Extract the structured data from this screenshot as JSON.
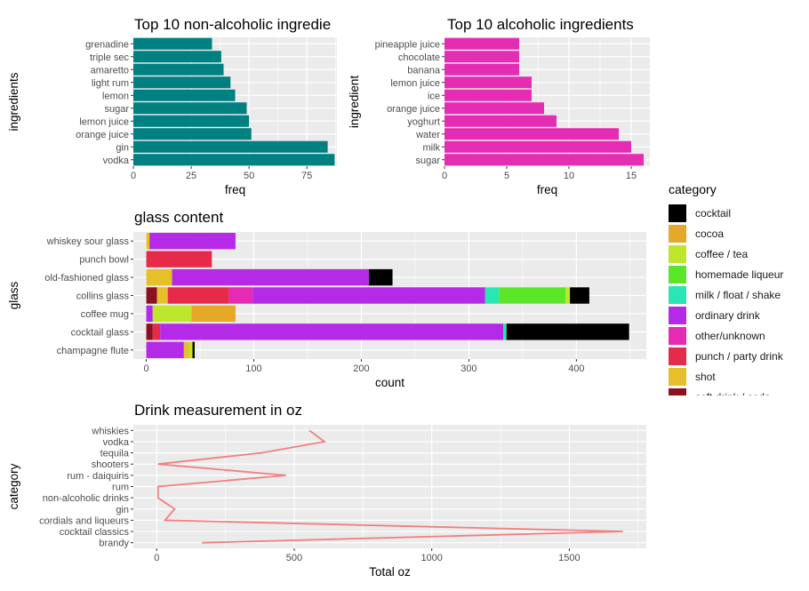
{
  "colors": {
    "panel_bg": "#EBEBEB",
    "grid": "#FFFFFF",
    "non_alc_bar": "#008080",
    "alc_bar": "#E52DB4",
    "line": "#F08080",
    "tick_text": "#4D4D4D"
  },
  "category_colors": {
    "cocktail": "#000000",
    "cocoa": "#E6A82A",
    "coffee / tea": "#BEE62A",
    "homemade liqueur": "#5CE62A",
    "milk / float / shake": "#2AE6B4",
    "ordinary drink": "#B42AE6",
    "other/unknown": "#E62AB4",
    "punch / party drink": "#E62A4A",
    "shot": "#E6C02A",
    "soft drink / soda": "#8B1020"
  },
  "legend": {
    "title": "category",
    "items": [
      "cocktail",
      "cocoa",
      "coffee / tea",
      "homemade liqueur",
      "milk / float / shake",
      "ordinary drink",
      "other/unknown",
      "punch / party drink",
      "shot",
      "soft drink / soda"
    ]
  },
  "chart_data": [
    {
      "type": "bar",
      "orientation": "horizontal",
      "title": "Top 10 non-alcoholic ingredie",
      "xlabel": "freq",
      "ylabel": "ingredients",
      "xlim": [
        0,
        88
      ],
      "xticks": [
        0,
        25,
        50,
        75
      ],
      "grid": true,
      "categories": [
        "vodka",
        "gin",
        "orange juice",
        "lemon juice",
        "sugar",
        "lemon",
        "light rum",
        "amaretto",
        "triple sec",
        "grenadine"
      ],
      "values": [
        87,
        84,
        51,
        50,
        49,
        44,
        42,
        39,
        38,
        34
      ]
    },
    {
      "type": "bar",
      "orientation": "horizontal",
      "title": "Top 10 alcoholic ingredients",
      "xlabel": "freq",
      "ylabel": "ingredient",
      "xlim": [
        0,
        16.5
      ],
      "xticks": [
        0,
        5,
        10,
        15
      ],
      "grid": true,
      "categories": [
        "sugar",
        "milk",
        "water",
        "yoghurt",
        "orange juice",
        "ice",
        "lemon juice",
        "banana",
        "chocolate",
        "pineapple juice"
      ],
      "values": [
        16,
        15,
        14,
        9,
        8,
        7,
        7,
        6,
        6,
        6
      ]
    },
    {
      "type": "bar",
      "orientation": "horizontal",
      "stacked": true,
      "title": "glass content",
      "xlabel": "count",
      "ylabel": "glass",
      "xlim": [
        -12,
        465
      ],
      "xticks": [
        0,
        100,
        200,
        300,
        400
      ],
      "grid": true,
      "legend": "right",
      "categories": [
        "champagne flute",
        "cocktail glass",
        "coffee mug",
        "collins glass",
        "old-fashioned glass",
        "punch bowl",
        "whiskey sour glass"
      ],
      "stacks": [
        [
          [
            "ordinary drink",
            35
          ],
          [
            "shot",
            5
          ],
          [
            "coffee / tea",
            3
          ],
          [
            "cocktail",
            2
          ]
        ],
        [
          [
            "soft drink / soda",
            6
          ],
          [
            "punch / party drink",
            7
          ],
          [
            "ordinary drink",
            319
          ],
          [
            "milk / float / shake",
            3
          ],
          [
            "cocktail",
            114
          ]
        ],
        [
          [
            "ordinary drink",
            6
          ],
          [
            "coffee / tea",
            36
          ],
          [
            "cocoa",
            41
          ]
        ],
        [
          [
            "soft drink / soda",
            10
          ],
          [
            "shot",
            10
          ],
          [
            "punch / party drink",
            57
          ],
          [
            "other/unknown",
            22
          ],
          [
            "ordinary drink",
            216
          ],
          [
            "milk / float / shake",
            13
          ],
          [
            "homemade liqueur",
            62
          ],
          [
            "coffee / tea",
            4
          ],
          [
            "cocktail",
            18
          ]
        ],
        [
          [
            "shot",
            24
          ],
          [
            "ordinary drink",
            183
          ],
          [
            "cocktail",
            22
          ]
        ],
        [
          [
            "punch / party drink",
            61
          ]
        ],
        [
          [
            "shot",
            3
          ],
          [
            "ordinary drink",
            80
          ]
        ]
      ]
    },
    {
      "type": "line",
      "orientation": "horizontal",
      "title": "Drink measurement in oz",
      "xlabel": "Total oz",
      "ylabel": "category",
      "xlim": [
        -85,
        1780
      ],
      "xticks": [
        0,
        500,
        1000,
        1500
      ],
      "grid": true,
      "categories": [
        "brandy",
        "cocktail classics",
        "cordials and liqueurs",
        "gin",
        "non-alcoholic drinks",
        "rum",
        "rum - daiquiris",
        "shooters",
        "tequila",
        "vodka",
        "whiskies"
      ],
      "values": [
        165,
        1695,
        30,
        65,
        5,
        5,
        470,
        5,
        380,
        610,
        555
      ]
    }
  ]
}
